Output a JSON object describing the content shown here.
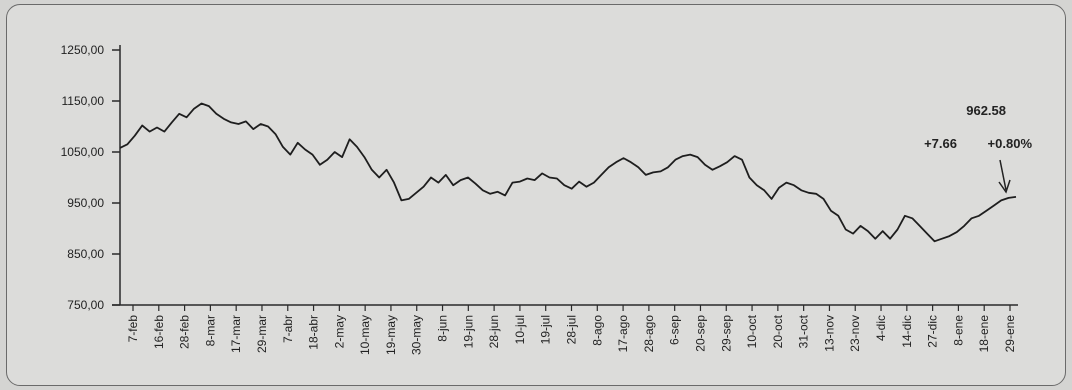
{
  "chart_data": {
    "type": "line",
    "title": "",
    "xlabel": "",
    "ylabel": "",
    "ylim": [
      750,
      1250
    ],
    "yticks": [
      "1250,00",
      "1150,00",
      "1050,00",
      "950,00",
      "850,00",
      "750,00"
    ],
    "ytick_values": [
      1250,
      1150,
      1050,
      950,
      850,
      750
    ],
    "grid": false,
    "x_labels": [
      "7-feb",
      "16-feb",
      "28-feb",
      "8-mar",
      "17-mar",
      "29-mar",
      "7-abr",
      "18-abr",
      "2-may",
      "10-may",
      "19-may",
      "30-may",
      "8-jun",
      "19-jun",
      "28-jun",
      "10-jul",
      "19-jul",
      "28-jul",
      "8-ago",
      "17-ago",
      "28-ago",
      "6-sep",
      "20-sep",
      "29-sep",
      "10-oct",
      "20-oct",
      "31-oct",
      "13-nov",
      "23-nov",
      "4-dic",
      "14-dic",
      "27-dic",
      "8-ene",
      "18-ene",
      "29-ene"
    ],
    "values": [
      1058,
      1065,
      1082,
      1102,
      1090,
      1098,
      1090,
      1108,
      1125,
      1118,
      1135,
      1145,
      1140,
      1125,
      1115,
      1108,
      1105,
      1110,
      1095,
      1105,
      1100,
      1085,
      1060,
      1045,
      1068,
      1055,
      1045,
      1025,
      1035,
      1050,
      1040,
      1075,
      1060,
      1040,
      1015,
      1000,
      1015,
      990,
      955,
      958,
      970,
      982,
      1000,
      990,
      1005,
      985,
      995,
      1000,
      988,
      975,
      968,
      972,
      965,
      990,
      992,
      998,
      995,
      1008,
      1000,
      998,
      985,
      978,
      992,
      982,
      990,
      1005,
      1020,
      1030,
      1038,
      1030,
      1020,
      1005,
      1010,
      1012,
      1020,
      1035,
      1042,
      1045,
      1040,
      1025,
      1015,
      1022,
      1030,
      1042,
      1035,
      1000,
      985,
      975,
      958,
      980,
      990,
      985,
      975,
      970,
      968,
      958,
      935,
      925,
      898,
      890,
      905,
      895,
      880,
      895,
      880,
      898,
      925,
      920,
      905,
      890,
      875,
      880,
      885,
      893,
      905,
      920,
      925,
      935,
      945,
      955,
      960,
      962
    ],
    "annotations": {
      "last_value": "962.58",
      "change": "+7.66",
      "change_pct": "+0.80%"
    }
  },
  "colors": {
    "line": "#1e1e1e",
    "axis": "#2a2a2a",
    "background": "#dcdcda"
  }
}
